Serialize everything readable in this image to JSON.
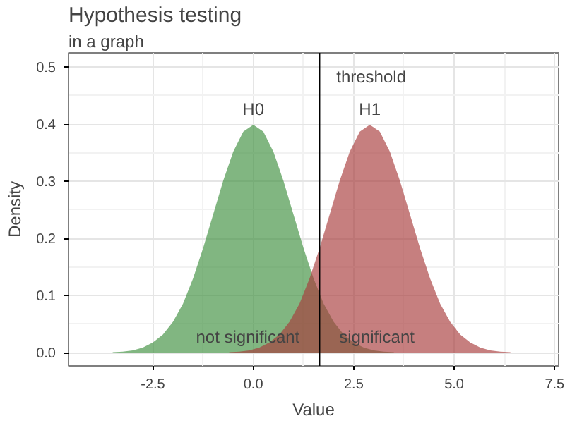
{
  "chart_data": {
    "type": "area",
    "title": "Hypothesis testing",
    "subtitle": "in a graph",
    "xlabel": "Value",
    "ylabel": "Density",
    "series": [
      {
        "name": "H0",
        "color": "#3d8f3d",
        "x": [
          -3.5,
          -3.25,
          -3,
          -2.75,
          -2.5,
          -2.25,
          -2,
          -1.75,
          -1.5,
          -1.25,
          -1,
          -0.75,
          -0.5,
          -0.25,
          0,
          0.25,
          0.5,
          0.75,
          1,
          1.25,
          1.5,
          1.75,
          2,
          2.25,
          2.5,
          2.75,
          3,
          3.25,
          3.5
        ],
        "values": [
          0.001,
          0.002,
          0.004,
          0.009,
          0.018,
          0.032,
          0.054,
          0.086,
          0.13,
          0.183,
          0.242,
          0.301,
          0.352,
          0.387,
          0.399,
          0.387,
          0.352,
          0.301,
          0.242,
          0.183,
          0.13,
          0.086,
          0.054,
          0.032,
          0.018,
          0.009,
          0.004,
          0.002,
          0.001
        ]
      },
      {
        "name": "H1",
        "color": "#a83a3a",
        "x": [
          -0.6,
          -0.35,
          -0.1,
          0.15,
          0.4,
          0.65,
          0.9,
          1.15,
          1.4,
          1.65,
          1.9,
          2.15,
          2.4,
          2.65,
          2.9,
          3.15,
          3.4,
          3.65,
          3.9,
          4.15,
          4.4,
          4.65,
          4.9,
          5.15,
          5.4,
          5.65,
          5.9,
          6.15,
          6.4
        ],
        "values": [
          0.001,
          0.002,
          0.004,
          0.009,
          0.018,
          0.032,
          0.054,
          0.086,
          0.13,
          0.183,
          0.242,
          0.301,
          0.352,
          0.387,
          0.399,
          0.387,
          0.352,
          0.301,
          0.242,
          0.183,
          0.13,
          0.086,
          0.054,
          0.032,
          0.018,
          0.009,
          0.004,
          0.002,
          0.001
        ]
      }
    ],
    "xlim": [
      -4.6,
      7.6
    ],
    "ylim": [
      -0.023,
      0.525
    ],
    "xticks": [
      {
        "value": -2.5,
        "label": "-2.5"
      },
      {
        "value": 0,
        "label": "0.0"
      },
      {
        "value": 2.5,
        "label": "2.5"
      },
      {
        "value": 5,
        "label": "5.0"
      },
      {
        "value": 7.5,
        "label": "7.5"
      }
    ],
    "yticks": [
      {
        "value": 0,
        "label": "0.0"
      },
      {
        "value": 0.1,
        "label": "0.1"
      },
      {
        "value": 0.2,
        "label": "0.2"
      },
      {
        "value": 0.3,
        "label": "0.3"
      },
      {
        "value": 0.4,
        "label": "0.4"
      },
      {
        "value": 0.5,
        "label": "0.5"
      }
    ],
    "ref_lines": [
      {
        "axis": "x",
        "value": 1.645,
        "label": "threshold",
        "color": "#000000"
      }
    ],
    "annotations": [
      "not significant",
      "significant"
    ],
    "grid": true
  }
}
